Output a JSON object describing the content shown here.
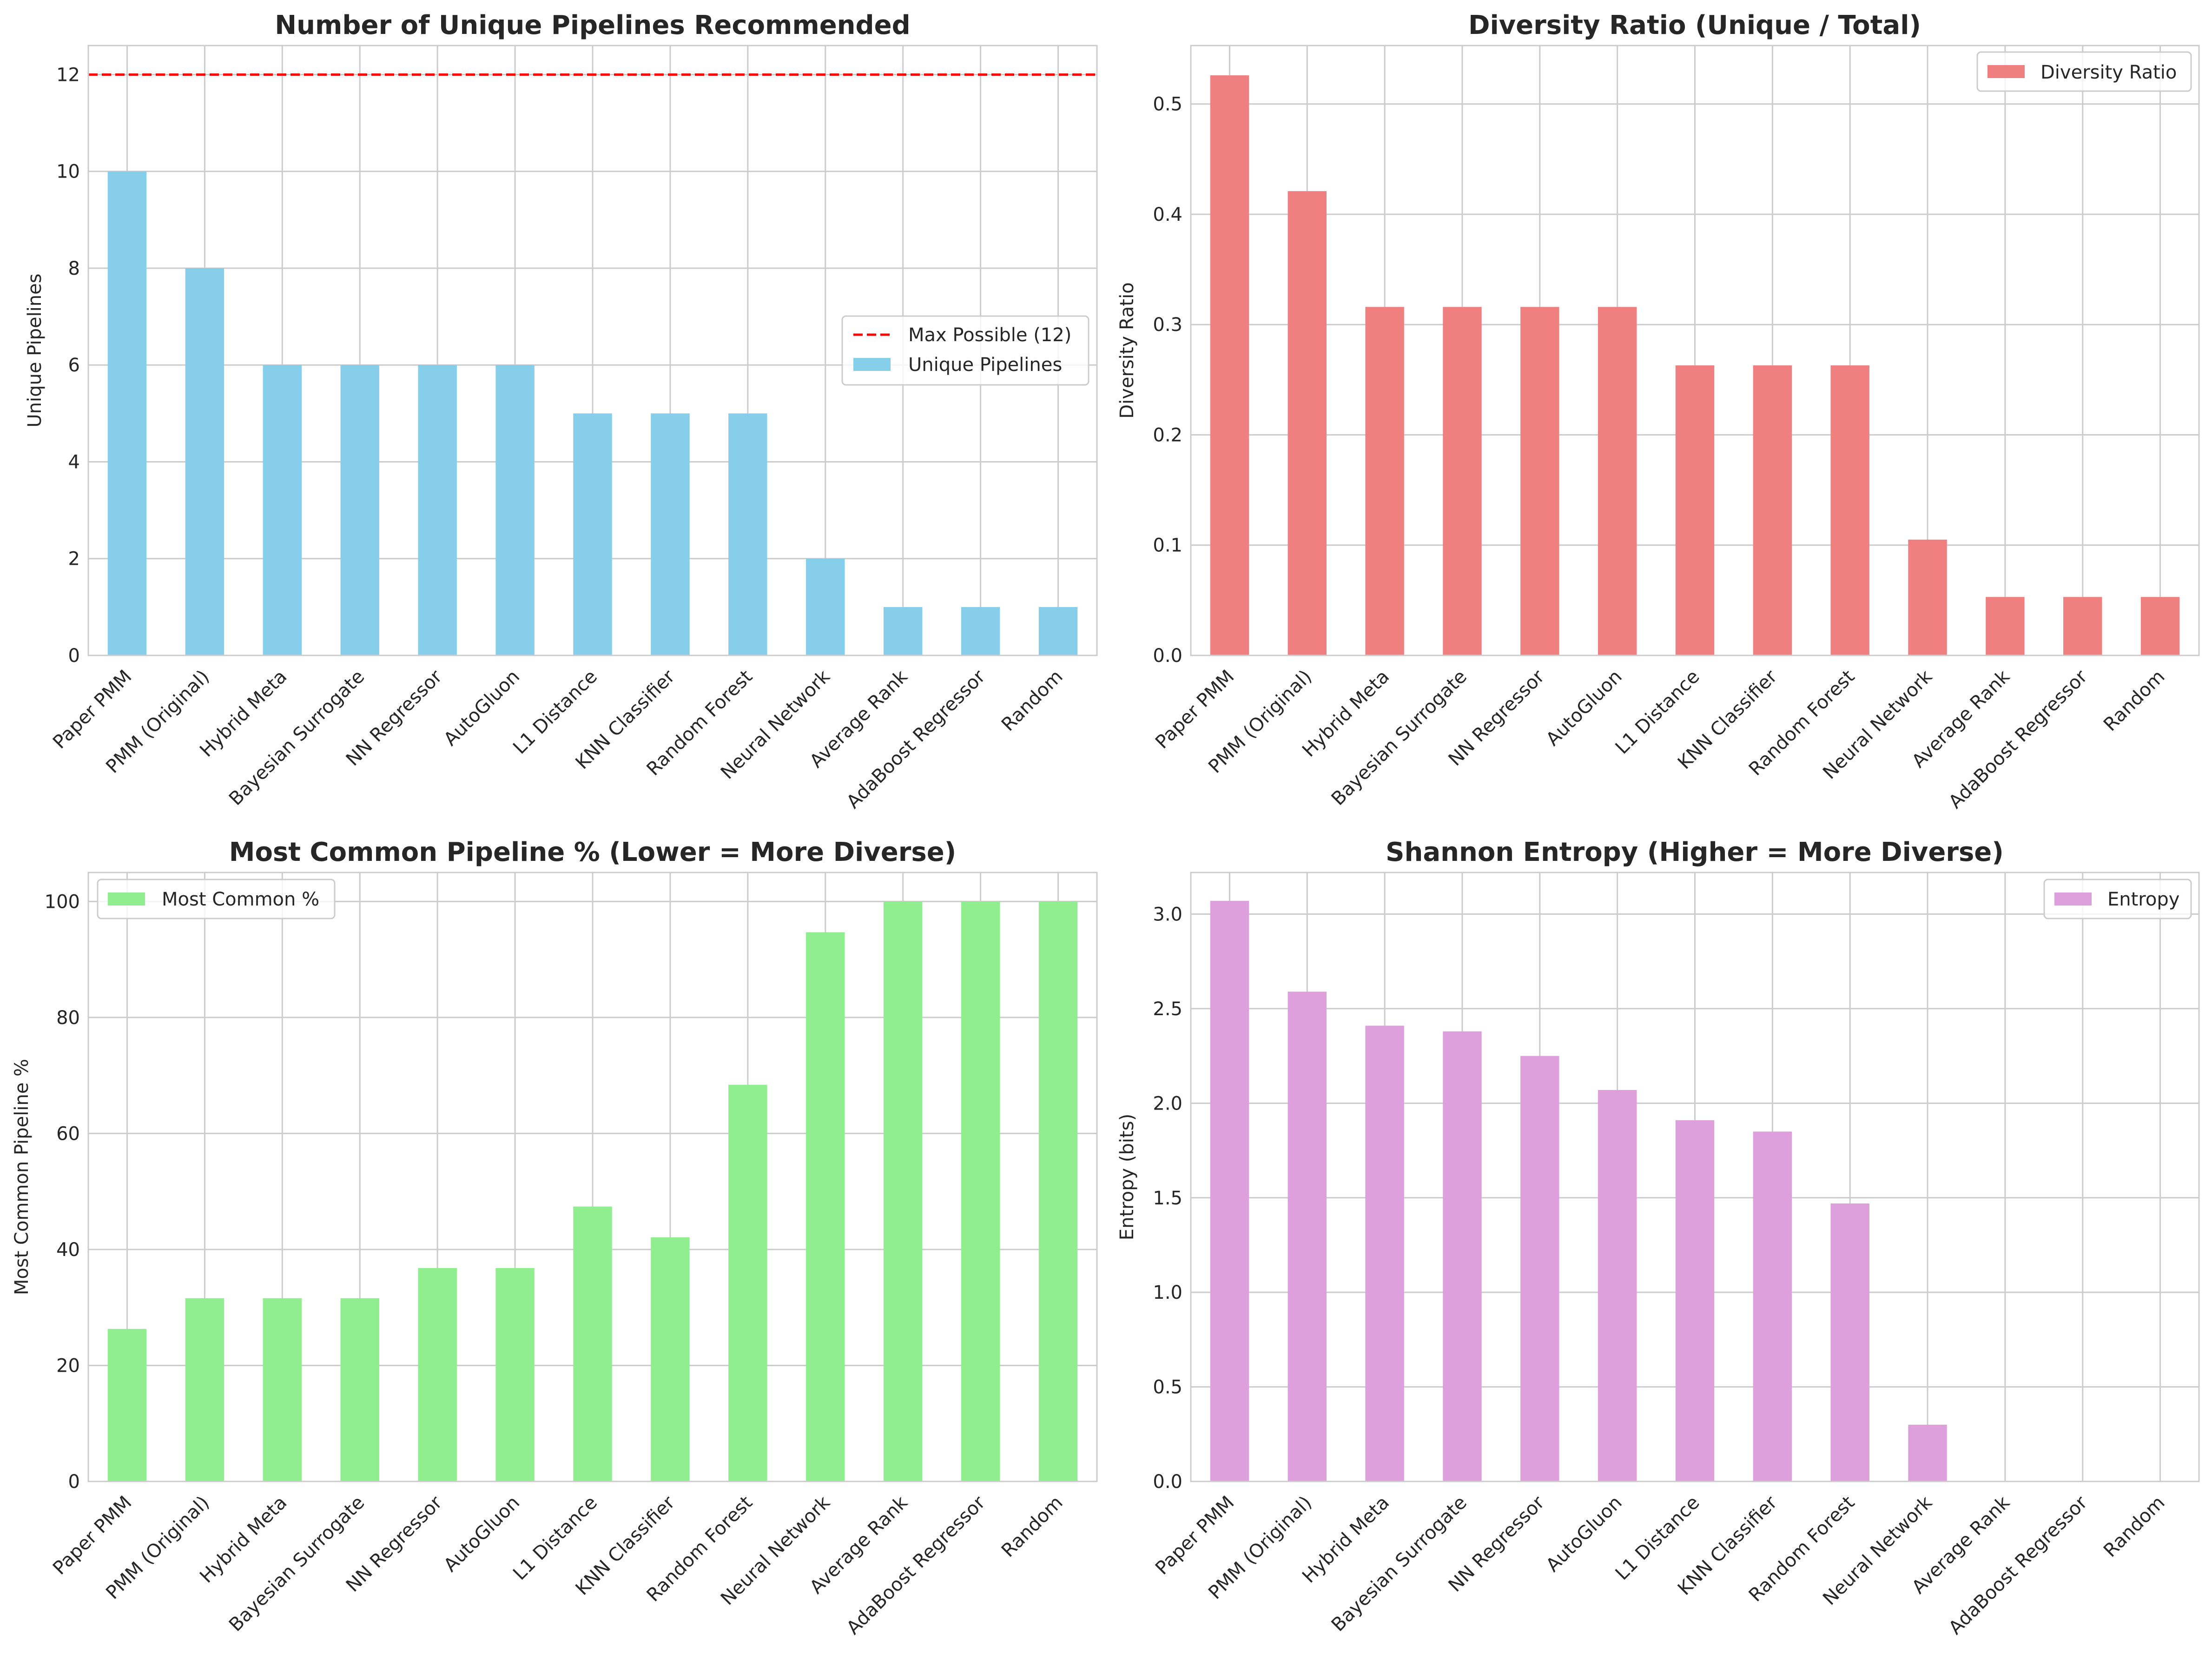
{
  "colors": {
    "unique": "#87ceeb",
    "ratio": "#f08080",
    "common": "#90ee90",
    "entropy": "#dda0dd",
    "maxline": "#ff0000"
  },
  "chart_data": [
    {
      "type": "bar",
      "title": "Number of Unique Pipelines Recommended",
      "xlabel": "",
      "ylabel": "Unique Pipelines",
      "ylim": [
        0,
        12.6
      ],
      "yticks": [
        0,
        2,
        4,
        6,
        8,
        10,
        12
      ],
      "ytick_labels": [
        "0",
        "2",
        "4",
        "6",
        "8",
        "10",
        "12"
      ],
      "grid": true,
      "legend_position": "center-right",
      "categories": [
        "Paper PMM",
        "PMM (Original)",
        "Hybrid Meta",
        "Bayesian Surrogate",
        "NN Regressor",
        "AutoGluon",
        "L1 Distance",
        "KNN Classifier",
        "Random Forest",
        "Neural Network",
        "Average Rank",
        "AdaBoost Regressor",
        "Random"
      ],
      "series": [
        {
          "name": "Unique Pipelines",
          "color": "#87ceeb",
          "values": [
            10,
            8,
            6,
            6,
            6,
            6,
            5,
            5,
            5,
            2,
            1,
            1,
            1
          ]
        }
      ],
      "reference_line": {
        "name": "Max Possible (12)",
        "y": 12,
        "style": "dashed",
        "color": "#ff0000"
      }
    },
    {
      "type": "bar",
      "title": "Diversity Ratio (Unique / Total)",
      "xlabel": "",
      "ylabel": "Diversity Ratio",
      "ylim": [
        0,
        0.553
      ],
      "yticks": [
        0,
        0.1,
        0.2,
        0.3,
        0.4,
        0.5
      ],
      "ytick_labels": [
        "0.0",
        "0.1",
        "0.2",
        "0.3",
        "0.4",
        "0.5"
      ],
      "grid": true,
      "legend_position": "top-right",
      "categories": [
        "Paper PMM",
        "PMM (Original)",
        "Hybrid Meta",
        "Bayesian Surrogate",
        "NN Regressor",
        "AutoGluon",
        "L1 Distance",
        "KNN Classifier",
        "Random Forest",
        "Neural Network",
        "Average Rank",
        "AdaBoost Regressor",
        "Random"
      ],
      "series": [
        {
          "name": "Diversity Ratio",
          "color": "#f08080",
          "values": [
            0.526,
            0.421,
            0.316,
            0.316,
            0.316,
            0.316,
            0.263,
            0.263,
            0.263,
            0.105,
            0.053,
            0.053,
            0.053
          ]
        }
      ]
    },
    {
      "type": "bar",
      "title": "Most Common Pipeline % (Lower = More Diverse)",
      "xlabel": "",
      "ylabel": "Most Common Pipeline %",
      "ylim": [
        0,
        105
      ],
      "yticks": [
        0,
        20,
        40,
        60,
        80,
        100
      ],
      "ytick_labels": [
        "0",
        "20",
        "40",
        "60",
        "80",
        "100"
      ],
      "grid": true,
      "legend_position": "top-left",
      "categories": [
        "Paper PMM",
        "PMM (Original)",
        "Hybrid Meta",
        "Bayesian Surrogate",
        "NN Regressor",
        "AutoGluon",
        "L1 Distance",
        "KNN Classifier",
        "Random Forest",
        "Neural Network",
        "Average Rank",
        "AdaBoost Regressor",
        "Random"
      ],
      "series": [
        {
          "name": "Most Common %",
          "color": "#90ee90",
          "values": [
            26.3,
            31.6,
            31.6,
            31.6,
            36.8,
            36.8,
            47.4,
            42.1,
            68.4,
            94.7,
            100,
            100,
            100
          ]
        }
      ]
    },
    {
      "type": "bar",
      "title": "Shannon Entropy (Higher = More Diverse)",
      "xlabel": "",
      "ylabel": "Entropy (bits)",
      "ylim": [
        0,
        3.22
      ],
      "yticks": [
        0,
        0.5,
        1.0,
        1.5,
        2.0,
        2.5,
        3.0
      ],
      "ytick_labels": [
        "0.0",
        "0.5",
        "1.0",
        "1.5",
        "2.0",
        "2.5",
        "3.0"
      ],
      "grid": true,
      "legend_position": "top-right",
      "categories": [
        "Paper PMM",
        "PMM (Original)",
        "Hybrid Meta",
        "Bayesian Surrogate",
        "NN Regressor",
        "AutoGluon",
        "L1 Distance",
        "KNN Classifier",
        "Random Forest",
        "Neural Network",
        "Average Rank",
        "AdaBoost Regressor",
        "Random"
      ],
      "series": [
        {
          "name": "Entropy",
          "color": "#dda0dd",
          "values": [
            3.07,
            2.59,
            2.41,
            2.38,
            2.25,
            2.07,
            1.91,
            1.85,
            1.47,
            0.3,
            0,
            0,
            0
          ]
        }
      ]
    }
  ]
}
